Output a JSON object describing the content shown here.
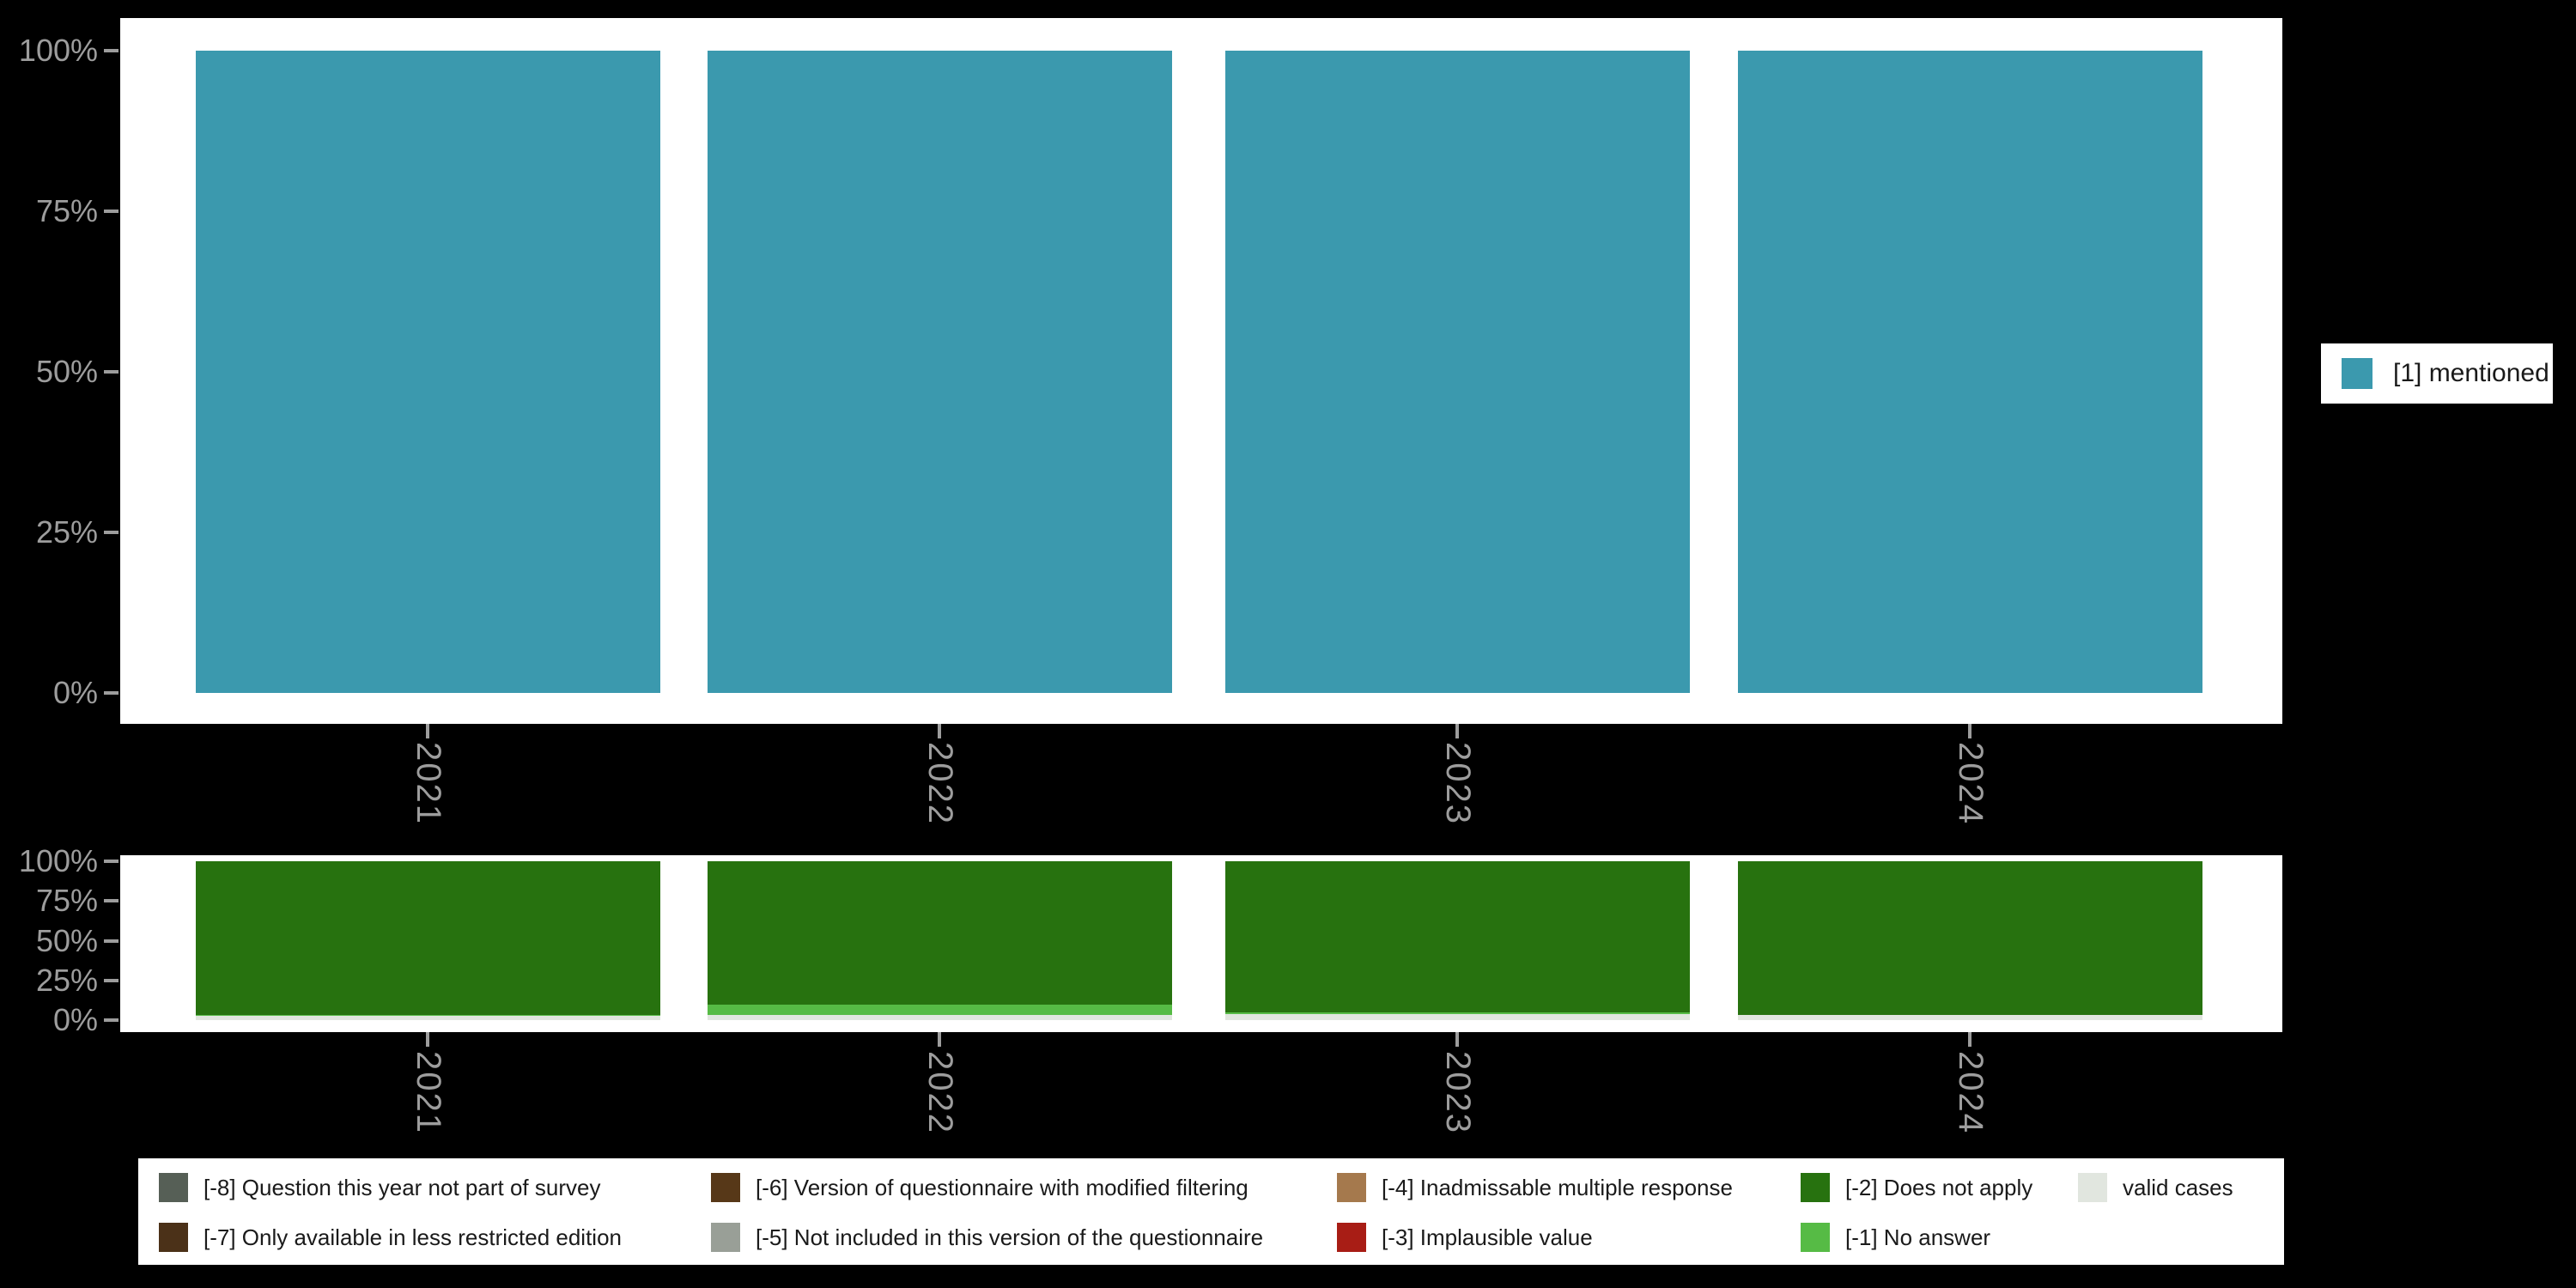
{
  "colors": {
    "background": "#000000",
    "panel_background": "#ffffff",
    "axis_text": "#9d9d9d",
    "mentioned": "#3B99AE",
    "m8": "#565F56",
    "m7": "#4B3118",
    "m6": "#573818",
    "m5": "#999F97",
    "m4": "#A5794D",
    "m3": "#A81D15",
    "m2": "#27720F",
    "m1": "#56BB45",
    "valid": "#E1E6DF"
  },
  "legend_right": {
    "label": "[1] mentioned",
    "color": "#3B99AE"
  },
  "missing_legend": {
    "items": [
      {
        "label": "[-8] Question this year not part of survey",
        "color": "#565F56"
      },
      {
        "label": "[-7] Only available in less restricted edition",
        "color": "#4B3118"
      },
      {
        "label": "[-6] Version of questionnaire with modified filtering",
        "color": "#573818"
      },
      {
        "label": "[-5] Not included in this version of the questionnaire",
        "color": "#999F97"
      },
      {
        "label": "[-4] Inadmissable multiple response",
        "color": "#A5794D"
      },
      {
        "label": "[-3] Implausible value",
        "color": "#A81D15"
      },
      {
        "label": "[-2] Does not apply",
        "color": "#27720F"
      },
      {
        "label": "[-1] No answer",
        "color": "#56BB45"
      },
      {
        "label": "valid cases",
        "color": "#E1E6DF"
      }
    ]
  },
  "chart_data": [
    {
      "type": "bar",
      "title": "",
      "categories": [
        "2021",
        "2022",
        "2023",
        "2024"
      ],
      "series": [
        {
          "name": "[1] mentioned",
          "color": "#3B99AE",
          "values": [
            100,
            100,
            100,
            100
          ]
        }
      ],
      "xlabel": "",
      "ylabel": "",
      "ylim": [
        0,
        100
      ],
      "yticks": [
        "0%",
        "25%",
        "50%",
        "75%",
        "100%"
      ],
      "grid": false,
      "legend_position": "right",
      "stacked": false
    },
    {
      "type": "bar",
      "title": "",
      "categories": [
        "2021",
        "2022",
        "2023",
        "2024"
      ],
      "series": [
        {
          "name": "valid cases",
          "color": "#E1E6DF",
          "values": [
            2.5,
            3,
            4,
            3.5
          ]
        },
        {
          "name": "[-1] No answer",
          "color": "#56BB45",
          "values": [
            1,
            7,
            1,
            0
          ]
        },
        {
          "name": "[-2] Does not apply",
          "color": "#27720F",
          "values": [
            96.5,
            90,
            95,
            96.5
          ]
        }
      ],
      "xlabel": "",
      "ylabel": "",
      "ylim": [
        0,
        100
      ],
      "yticks": [
        "0%",
        "25%",
        "50%",
        "75%",
        "100%"
      ],
      "grid": false,
      "legend_position": "bottom",
      "stacked": true
    }
  ]
}
